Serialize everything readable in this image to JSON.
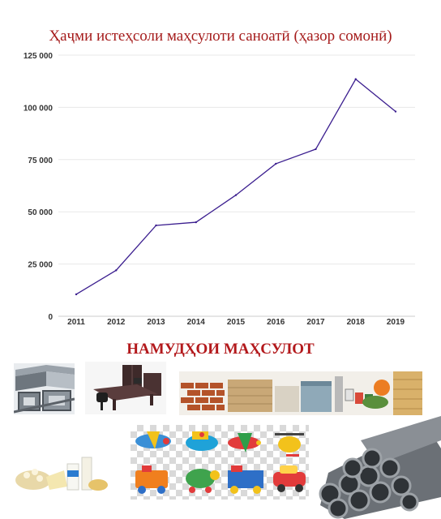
{
  "chart_data": {
    "type": "line",
    "title": "Ҳаҷми истеҳсоли маҳсулоти саноатӣ (ҳазор сомонӣ)",
    "xlabel": "",
    "ylabel": "",
    "x": [
      "2011",
      "2012",
      "2013",
      "2014",
      "2015",
      "2016",
      "2017",
      "2018",
      "2019"
    ],
    "values": [
      10500,
      22000,
      43500,
      45000,
      58000,
      73000,
      80000,
      113500,
      98000
    ],
    "ylim": [
      0,
      125000
    ],
    "y_ticks": [
      "0",
      "25 000",
      "50 000",
      "75 000",
      "100 000",
      "125 000"
    ],
    "grid": true,
    "line_color": "#3b1e8f"
  },
  "section": {
    "title": "НАМУДҲОИ МАҲСУЛОТ"
  },
  "photos": [
    {
      "name": "steel-profiles-photo"
    },
    {
      "name": "office-furniture-photo"
    },
    {
      "name": "building-materials-photo"
    },
    {
      "name": "dairy-products-photo"
    },
    {
      "name": "toys-photo"
    },
    {
      "name": "steel-pipes-photo"
    }
  ],
  "colors": {
    "title": "#a51c1c",
    "section_title": "#b3191c",
    "gridline": "#e8e8e8"
  }
}
